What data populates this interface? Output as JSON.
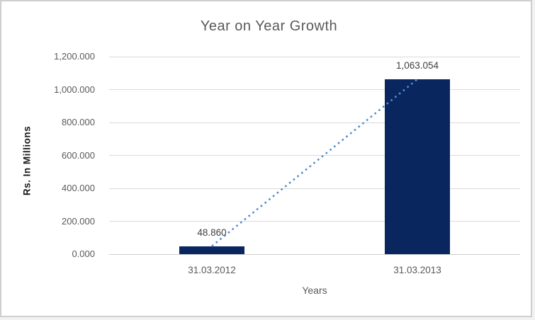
{
  "frame": {
    "background": "#ffffff",
    "border_color": "#cfcfcf"
  },
  "chart_data": {
    "type": "bar",
    "title": "Year on Year Growth",
    "xlabel": "Years",
    "ylabel": "Rs. In Millions",
    "categories": [
      "31.03.2012",
      "31.03.2013"
    ],
    "series": [
      {
        "name": "Rs. In Millions",
        "values": [
          48.86,
          1063.054
        ]
      }
    ],
    "data_labels": [
      "48.860",
      "1,063.054"
    ],
    "ylim": [
      0,
      1200
    ],
    "yticks": [
      0,
      200,
      400,
      600,
      800,
      1000,
      1200
    ],
    "ytick_labels": [
      "0.000",
      "200.000",
      "400.000",
      "600.000",
      "800.000",
      "1,000.000",
      "1,200.000"
    ],
    "grid": true,
    "legend_position": "none",
    "trendline": {
      "type": "linear",
      "dash": "dotted",
      "color": "#548cce"
    },
    "colors": {
      "bar": "#0a265e",
      "gridline": "#d9d9d9",
      "axis_line": "#cfcfcf",
      "tick_label": "#595959",
      "title": "#595959",
      "data_label": "#404040"
    }
  }
}
